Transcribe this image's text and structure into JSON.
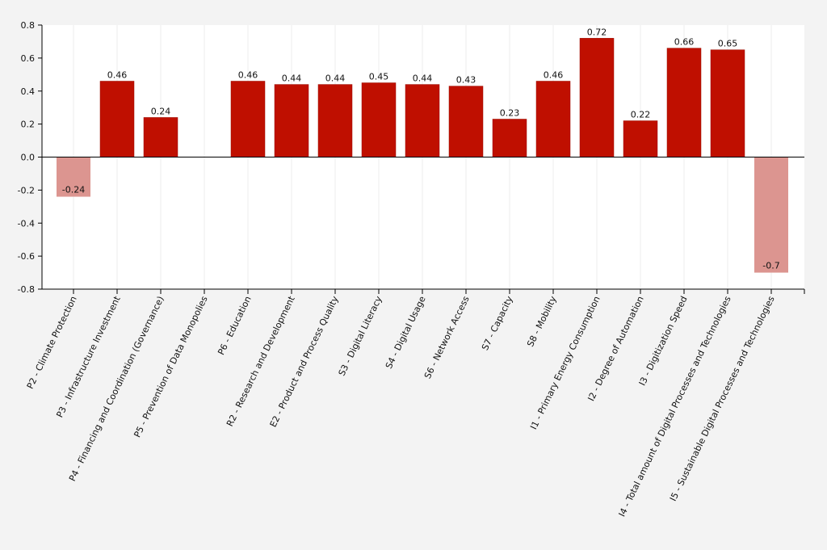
{
  "chart_data": {
    "type": "bar",
    "title": "",
    "xlabel": "",
    "ylabel": "",
    "ylim": [
      -0.8,
      0.8
    ],
    "yticks": [
      "0.8",
      "0.6",
      "0.4",
      "0.2",
      "0.0",
      "-0.2",
      "-0.4",
      "-0.6",
      "-0.8"
    ],
    "grid": "vertical lines at category centers",
    "colors": {
      "positive": "#bf0f00",
      "negative": "#dc9590",
      "plot_background": "#ffffff",
      "page_background": "#f3f3f3",
      "axis": "#000000"
    },
    "categories": [
      "P2 - Climate Protection",
      "P3 - Infrastructure Investment",
      "P4 - Financing and Coordination (Governance)",
      "P5 - Prevention of Data Monopolies",
      "P6 - Education",
      "R2 - Research and Development",
      "E2 - Product and Process Quality",
      "S3 - Digital Literacy",
      "S4 - Digital Usage",
      "S6 - Network Access",
      "S7 - Capacity",
      "S8 - Mobility",
      "I1 - Primary Energy Consumption",
      "I2 - Degree of Automation",
      "I3 - Digitization Speed",
      "I4 - Total amount of Digital Processes and Technologies",
      "I5 - Sustainable Digital Processes and Technologies"
    ],
    "values": [
      -0.24,
      0.46,
      0.24,
      null,
      0.46,
      0.44,
      0.44,
      0.45,
      0.44,
      0.43,
      0.23,
      0.46,
      0.72,
      0.22,
      0.66,
      0.65,
      -0.7
    ],
    "data_labels": [
      "-0.24",
      "0.46",
      "0.24",
      "",
      "0.46",
      "0.44",
      "0.44",
      "0.45",
      "0.44",
      "0.43",
      "0.23",
      "0.46",
      "0.72",
      "0.22",
      "0.66",
      "0.65",
      "-0.7"
    ]
  }
}
